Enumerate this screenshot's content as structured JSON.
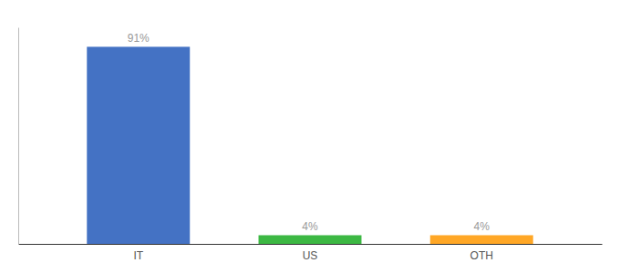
{
  "chart_data": {
    "type": "bar",
    "categories": [
      "IT",
      "US",
      "OTH"
    ],
    "values": [
      91,
      4,
      4
    ],
    "value_labels": [
      "91%",
      "4%",
      "4%"
    ],
    "colors": [
      "#4472C4",
      "#3CB843",
      "#FFA726"
    ],
    "ylim": [
      0,
      100
    ],
    "data_labels": true,
    "tick_labels": "x",
    "grid": false
  }
}
